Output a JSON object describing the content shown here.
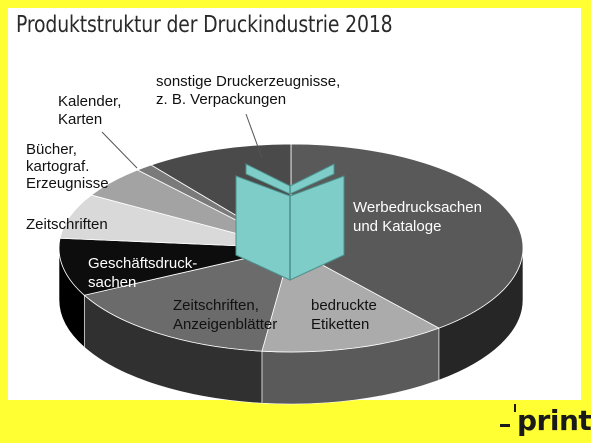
{
  "title": "Produktstruktur der Druckindustrie 2018",
  "logo": {
    "text": "print"
  },
  "colors": {
    "background": "#ffff33",
    "book_icon": "#7fcdc8"
  },
  "chart_data": {
    "type": "pie",
    "style": "3d",
    "title": "Produktstruktur der Druckindustrie 2018",
    "unit": "",
    "slices": [
      {
        "label": [
          "Werbedrucksachen",
          "und Kataloge"
        ],
        "value": 39.0,
        "color": "#595959",
        "side": "#262626",
        "label_color": "#ffffff"
      },
      {
        "label": [
          "bedruckte",
          "Etiketten"
        ],
        "value": 13.0,
        "color": "#ababab",
        "side": "#5a5a5a",
        "label_color": "#111111"
      },
      {
        "label": [
          "Zeitschriften,",
          "Anzeigenblätter"
        ],
        "value": 15.5,
        "color": "#6b6b6b",
        "side": "#303030",
        "label_color": "#111111"
      },
      {
        "label": [
          "Geschäftsdruck-",
          "sachen"
        ],
        "value": 9.0,
        "color": "#0d0d0d",
        "side": "#000000",
        "label_color": "#ffffff"
      },
      {
        "label": [
          "Zeitschriften"
        ],
        "value": 7.0,
        "color": "#d9d9d9",
        "side": "#7a7a7a",
        "label_color": "#111111"
      },
      {
        "label": [
          "Bücher,",
          "kartograf.",
          "Erzeugnisse"
        ],
        "value": 5.0,
        "color": "#a3a3a3",
        "side": "#555555",
        "label_color": "#111111"
      },
      {
        "label": [
          "Kalender,",
          "Karten"
        ],
        "value": 1.2,
        "color": "#7a7a7a",
        "side": "#3a3a3a",
        "label_color": "#111111"
      },
      {
        "label": [
          "sonstige Druckerzeugnisse,",
          "z. B. Verpackungen"
        ],
        "value": 10.3,
        "color": "#4a4a4a",
        "side": "#222222",
        "label_color": "#111111"
      }
    ]
  }
}
